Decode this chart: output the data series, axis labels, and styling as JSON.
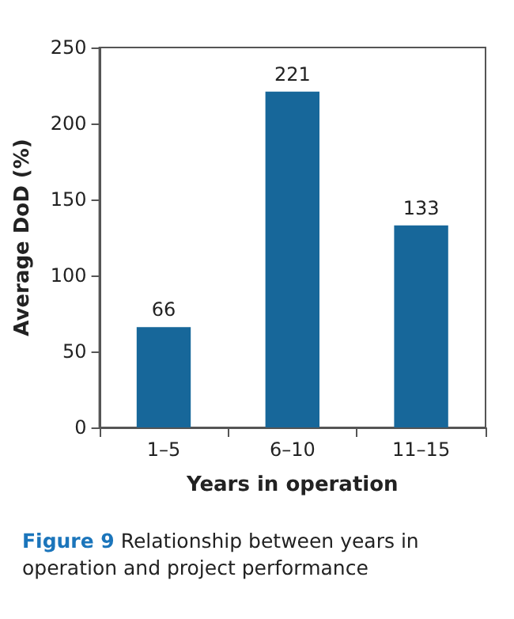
{
  "chart_data": {
    "type": "bar",
    "xlabel": "Years in operation",
    "ylabel": "Average DoD (%)",
    "categories": [
      "1–5",
      "6–10",
      "11–15"
    ],
    "values": [
      66,
      221,
      133
    ],
    "color": "#17679a",
    "ylim": [
      0,
      250
    ],
    "yticks": [
      0,
      50,
      100,
      150,
      200,
      250
    ],
    "grid": false,
    "data_labels": true,
    "annotations": [
      "Figure 9",
      "Relationship between years in operation and project performance"
    ]
  }
}
